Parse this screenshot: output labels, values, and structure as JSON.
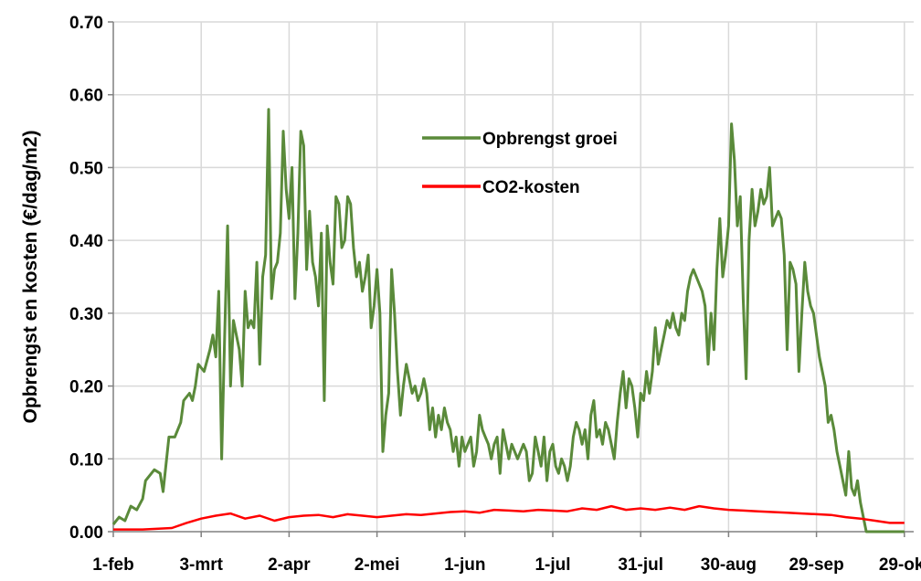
{
  "chart_data": {
    "type": "line",
    "title": "",
    "xlabel": "",
    "ylabel": "Opbrengst en kosten (€/dag/m2)",
    "ylim": [
      0,
      0.7
    ],
    "yticks": [
      "0.00",
      "0.10",
      "0.20",
      "0.30",
      "0.40",
      "0.50",
      "0.60",
      "0.70"
    ],
    "xticks": [
      "1-feb",
      "3-mrt",
      "2-apr",
      "2-mei",
      "1-jun",
      "1-jul",
      "31-jul",
      "30-aug",
      "29-sep",
      "29-okt"
    ],
    "xlim_days": [
      0,
      270
    ],
    "grid": "vertical and horizontal",
    "legend": "inside, upper middle",
    "series": [
      {
        "name": "Opbrengst groei",
        "color": "#5a8a3a",
        "points": [
          [
            0,
            0.01
          ],
          [
            2,
            0.02
          ],
          [
            4,
            0.015
          ],
          [
            6,
            0.035
          ],
          [
            8,
            0.03
          ],
          [
            10,
            0.045
          ],
          [
            11,
            0.07
          ],
          [
            13,
            0.08
          ],
          [
            14,
            0.085
          ],
          [
            16,
            0.08
          ],
          [
            17,
            0.055
          ],
          [
            19,
            0.13
          ],
          [
            21,
            0.13
          ],
          [
            23,
            0.15
          ],
          [
            24,
            0.18
          ],
          [
            26,
            0.19
          ],
          [
            27,
            0.18
          ],
          [
            28,
            0.2
          ],
          [
            29,
            0.23
          ],
          [
            31,
            0.22
          ],
          [
            33,
            0.25
          ],
          [
            34,
            0.27
          ],
          [
            35,
            0.24
          ],
          [
            36,
            0.33
          ],
          [
            37,
            0.1
          ],
          [
            38,
            0.27
          ],
          [
            39,
            0.42
          ],
          [
            40,
            0.2
          ],
          [
            41,
            0.29
          ],
          [
            42,
            0.27
          ],
          [
            43,
            0.25
          ],
          [
            44,
            0.2
          ],
          [
            45,
            0.33
          ],
          [
            46,
            0.28
          ],
          [
            47,
            0.29
          ],
          [
            48,
            0.28
          ],
          [
            49,
            0.37
          ],
          [
            50,
            0.23
          ],
          [
            51,
            0.35
          ],
          [
            52,
            0.38
          ],
          [
            53,
            0.58
          ],
          [
            54,
            0.32
          ],
          [
            55,
            0.36
          ],
          [
            56,
            0.37
          ],
          [
            57,
            0.41
          ],
          [
            58,
            0.55
          ],
          [
            59,
            0.47
          ],
          [
            60,
            0.43
          ],
          [
            61,
            0.5
          ],
          [
            62,
            0.32
          ],
          [
            63,
            0.41
          ],
          [
            64,
            0.55
          ],
          [
            65,
            0.53
          ],
          [
            66,
            0.36
          ],
          [
            67,
            0.44
          ],
          [
            68,
            0.37
          ],
          [
            69,
            0.35
          ],
          [
            70,
            0.31
          ],
          [
            71,
            0.41
          ],
          [
            72,
            0.18
          ],
          [
            73,
            0.42
          ],
          [
            74,
            0.37
          ],
          [
            75,
            0.34
          ],
          [
            76,
            0.46
          ],
          [
            77,
            0.45
          ],
          [
            78,
            0.39
          ],
          [
            79,
            0.4
          ],
          [
            80,
            0.46
          ],
          [
            81,
            0.45
          ],
          [
            82,
            0.39
          ],
          [
            83,
            0.35
          ],
          [
            84,
            0.37
          ],
          [
            85,
            0.33
          ],
          [
            86,
            0.35
          ],
          [
            87,
            0.38
          ],
          [
            88,
            0.28
          ],
          [
            89,
            0.31
          ],
          [
            90,
            0.36
          ],
          [
            91,
            0.3
          ],
          [
            92,
            0.11
          ],
          [
            93,
            0.16
          ],
          [
            94,
            0.19
          ],
          [
            95,
            0.36
          ],
          [
            96,
            0.3
          ],
          [
            97,
            0.22
          ],
          [
            98,
            0.16
          ],
          [
            99,
            0.2
          ],
          [
            100,
            0.23
          ],
          [
            101,
            0.21
          ],
          [
            102,
            0.19
          ],
          [
            103,
            0.2
          ],
          [
            104,
            0.18
          ],
          [
            105,
            0.19
          ],
          [
            106,
            0.21
          ],
          [
            107,
            0.19
          ],
          [
            108,
            0.14
          ],
          [
            109,
            0.17
          ],
          [
            110,
            0.13
          ],
          [
            111,
            0.16
          ],
          [
            112,
            0.14
          ],
          [
            113,
            0.17
          ],
          [
            114,
            0.15
          ],
          [
            115,
            0.14
          ],
          [
            116,
            0.11
          ],
          [
            117,
            0.13
          ],
          [
            118,
            0.09
          ],
          [
            119,
            0.13
          ],
          [
            120,
            0.11
          ],
          [
            121,
            0.12
          ],
          [
            122,
            0.13
          ],
          [
            123,
            0.09
          ],
          [
            124,
            0.11
          ],
          [
            125,
            0.16
          ],
          [
            126,
            0.14
          ],
          [
            127,
            0.13
          ],
          [
            128,
            0.12
          ],
          [
            129,
            0.1
          ],
          [
            130,
            0.12
          ],
          [
            131,
            0.13
          ],
          [
            132,
            0.08
          ],
          [
            133,
            0.14
          ],
          [
            134,
            0.12
          ],
          [
            135,
            0.1
          ],
          [
            136,
            0.12
          ],
          [
            137,
            0.11
          ],
          [
            138,
            0.1
          ],
          [
            139,
            0.11
          ],
          [
            140,
            0.12
          ],
          [
            141,
            0.11
          ],
          [
            142,
            0.07
          ],
          [
            143,
            0.08
          ],
          [
            144,
            0.13
          ],
          [
            145,
            0.11
          ],
          [
            146,
            0.09
          ],
          [
            147,
            0.13
          ],
          [
            148,
            0.07
          ],
          [
            149,
            0.11
          ],
          [
            150,
            0.12
          ],
          [
            151,
            0.09
          ],
          [
            152,
            0.08
          ],
          [
            153,
            0.1
          ],
          [
            154,
            0.09
          ],
          [
            155,
            0.07
          ],
          [
            156,
            0.09
          ],
          [
            157,
            0.13
          ],
          [
            158,
            0.15
          ],
          [
            159,
            0.14
          ],
          [
            160,
            0.12
          ],
          [
            161,
            0.14
          ],
          [
            162,
            0.1
          ],
          [
            163,
            0.16
          ],
          [
            164,
            0.18
          ],
          [
            165,
            0.13
          ],
          [
            166,
            0.14
          ],
          [
            167,
            0.12
          ],
          [
            168,
            0.15
          ],
          [
            169,
            0.14
          ],
          [
            170,
            0.12
          ],
          [
            171,
            0.1
          ],
          [
            172,
            0.15
          ],
          [
            173,
            0.19
          ],
          [
            174,
            0.22
          ],
          [
            175,
            0.17
          ],
          [
            176,
            0.21
          ],
          [
            177,
            0.2
          ],
          [
            178,
            0.17
          ],
          [
            179,
            0.13
          ],
          [
            180,
            0.19
          ],
          [
            181,
            0.18
          ],
          [
            182,
            0.22
          ],
          [
            183,
            0.19
          ],
          [
            184,
            0.22
          ],
          [
            185,
            0.28
          ],
          [
            186,
            0.23
          ],
          [
            187,
            0.25
          ],
          [
            188,
            0.27
          ],
          [
            189,
            0.29
          ],
          [
            190,
            0.28
          ],
          [
            191,
            0.3
          ],
          [
            192,
            0.28
          ],
          [
            193,
            0.27
          ],
          [
            194,
            0.3
          ],
          [
            195,
            0.29
          ],
          [
            196,
            0.33
          ],
          [
            197,
            0.35
          ],
          [
            198,
            0.36
          ],
          [
            199,
            0.35
          ],
          [
            200,
            0.34
          ],
          [
            201,
            0.33
          ],
          [
            202,
            0.31
          ],
          [
            203,
            0.23
          ],
          [
            204,
            0.3
          ],
          [
            205,
            0.25
          ],
          [
            206,
            0.36
          ],
          [
            207,
            0.43
          ],
          [
            208,
            0.35
          ],
          [
            209,
            0.38
          ],
          [
            210,
            0.42
          ],
          [
            211,
            0.56
          ],
          [
            212,
            0.51
          ],
          [
            213,
            0.42
          ],
          [
            214,
            0.46
          ],
          [
            215,
            0.32
          ],
          [
            216,
            0.21
          ],
          [
            217,
            0.4
          ],
          [
            218,
            0.47
          ],
          [
            219,
            0.42
          ],
          [
            220,
            0.44
          ],
          [
            221,
            0.47
          ],
          [
            222,
            0.45
          ],
          [
            223,
            0.46
          ],
          [
            224,
            0.5
          ],
          [
            225,
            0.42
          ],
          [
            226,
            0.43
          ],
          [
            227,
            0.44
          ],
          [
            228,
            0.43
          ],
          [
            229,
            0.38
          ],
          [
            230,
            0.25
          ],
          [
            231,
            0.37
          ],
          [
            232,
            0.36
          ],
          [
            233,
            0.34
          ],
          [
            234,
            0.22
          ],
          [
            235,
            0.3
          ],
          [
            236,
            0.37
          ],
          [
            237,
            0.33
          ],
          [
            238,
            0.31
          ],
          [
            239,
            0.3
          ],
          [
            240,
            0.27
          ],
          [
            241,
            0.24
          ],
          [
            242,
            0.22
          ],
          [
            243,
            0.2
          ],
          [
            244,
            0.15
          ],
          [
            245,
            0.16
          ],
          [
            246,
            0.14
          ],
          [
            247,
            0.11
          ],
          [
            248,
            0.09
          ],
          [
            249,
            0.07
          ],
          [
            250,
            0.05
          ],
          [
            251,
            0.11
          ],
          [
            252,
            0.06
          ],
          [
            253,
            0.05
          ],
          [
            254,
            0.07
          ],
          [
            255,
            0.04
          ],
          [
            256,
            0.02
          ],
          [
            257,
            0.0
          ],
          [
            260,
            0.0
          ],
          [
            270,
            0.0
          ]
        ]
      },
      {
        "name": "CO2-kosten",
        "color": "#ff0000",
        "points": [
          [
            0,
            0.003
          ],
          [
            10,
            0.003
          ],
          [
            20,
            0.005
          ],
          [
            25,
            0.012
          ],
          [
            30,
            0.018
          ],
          [
            35,
            0.022
          ],
          [
            40,
            0.025
          ],
          [
            45,
            0.018
          ],
          [
            50,
            0.022
          ],
          [
            55,
            0.015
          ],
          [
            60,
            0.02
          ],
          [
            65,
            0.022
          ],
          [
            70,
            0.023
          ],
          [
            75,
            0.02
          ],
          [
            80,
            0.024
          ],
          [
            85,
            0.022
          ],
          [
            90,
            0.02
          ],
          [
            95,
            0.022
          ],
          [
            100,
            0.024
          ],
          [
            105,
            0.023
          ],
          [
            110,
            0.025
          ],
          [
            115,
            0.027
          ],
          [
            120,
            0.028
          ],
          [
            125,
            0.026
          ],
          [
            130,
            0.03
          ],
          [
            135,
            0.029
          ],
          [
            140,
            0.028
          ],
          [
            145,
            0.03
          ],
          [
            150,
            0.029
          ],
          [
            155,
            0.028
          ],
          [
            160,
            0.032
          ],
          [
            165,
            0.03
          ],
          [
            170,
            0.035
          ],
          [
            175,
            0.03
          ],
          [
            180,
            0.032
          ],
          [
            185,
            0.03
          ],
          [
            190,
            0.033
          ],
          [
            195,
            0.03
          ],
          [
            200,
            0.035
          ],
          [
            205,
            0.032
          ],
          [
            210,
            0.03
          ],
          [
            215,
            0.029
          ],
          [
            220,
            0.028
          ],
          [
            225,
            0.027
          ],
          [
            230,
            0.026
          ],
          [
            235,
            0.025
          ],
          [
            240,
            0.024
          ],
          [
            245,
            0.023
          ],
          [
            250,
            0.02
          ],
          [
            255,
            0.018
          ],
          [
            260,
            0.015
          ],
          [
            265,
            0.012
          ],
          [
            270,
            0.012
          ]
        ]
      }
    ]
  }
}
